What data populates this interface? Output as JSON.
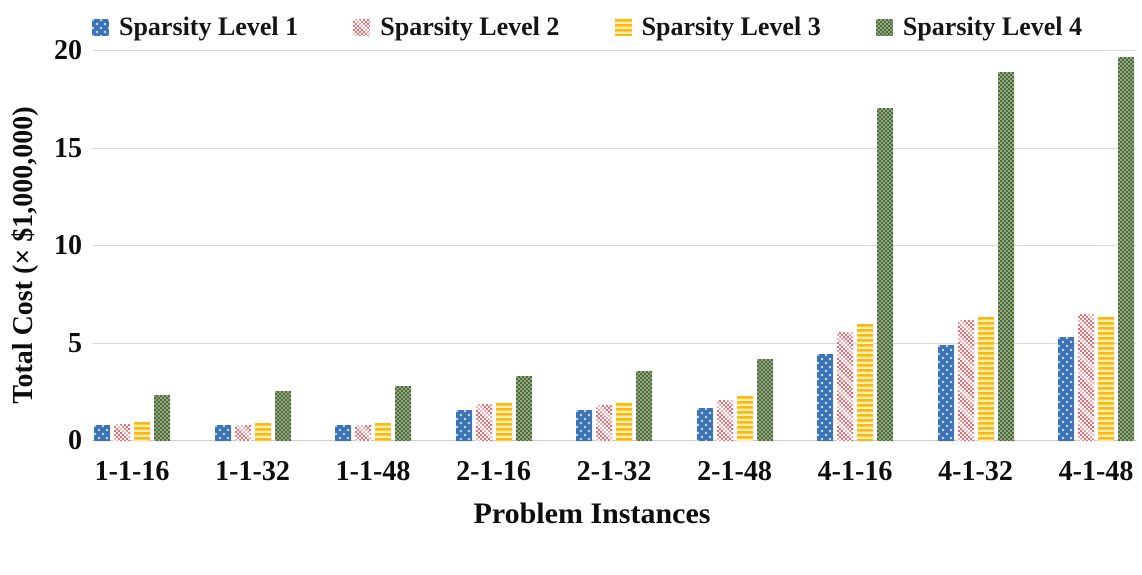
{
  "chart_data": {
    "type": "bar",
    "title": "",
    "xlabel": "Problem Instances",
    "ylabel": "Total Cost (× $1,000,000)",
    "ylim": [
      0,
      20
    ],
    "yticks": [
      0,
      5,
      10,
      15,
      20
    ],
    "grid": true,
    "legend_position": "top",
    "categories": [
      "1-1-16",
      "1-1-32",
      "1-1-48",
      "2-1-16",
      "2-1-32",
      "2-1-48",
      "4-1-16",
      "4-1-32",
      "4-1-48"
    ],
    "series": [
      {
        "name": "Sparsity Level 1",
        "color": "#3B73B7",
        "pattern": "blue-dots",
        "values": [
          0.8,
          0.8,
          0.8,
          1.6,
          1.6,
          1.7,
          4.45,
          4.9,
          5.35
        ]
      },
      {
        "name": "Sparsity Level 2",
        "color": "#EE686C",
        "pattern": "pink-checker-diagonal",
        "values": [
          0.85,
          0.8,
          0.8,
          1.9,
          1.85,
          2.1,
          5.6,
          6.2,
          6.5
        ]
      },
      {
        "name": "Sparsity Level 3",
        "color": "#F8BA10",
        "pattern": "yellow-horizontal-stripes",
        "values": [
          0.95,
          0.9,
          0.9,
          1.95,
          1.95,
          2.3,
          6.0,
          6.35,
          6.35
        ]
      },
      {
        "name": "Sparsity Level 4",
        "color": "#4D6B3C",
        "pattern": "green-checker",
        "values": [
          2.35,
          2.55,
          2.8,
          3.35,
          3.6,
          4.2,
          17.1,
          18.9,
          19.7
        ]
      }
    ]
  }
}
